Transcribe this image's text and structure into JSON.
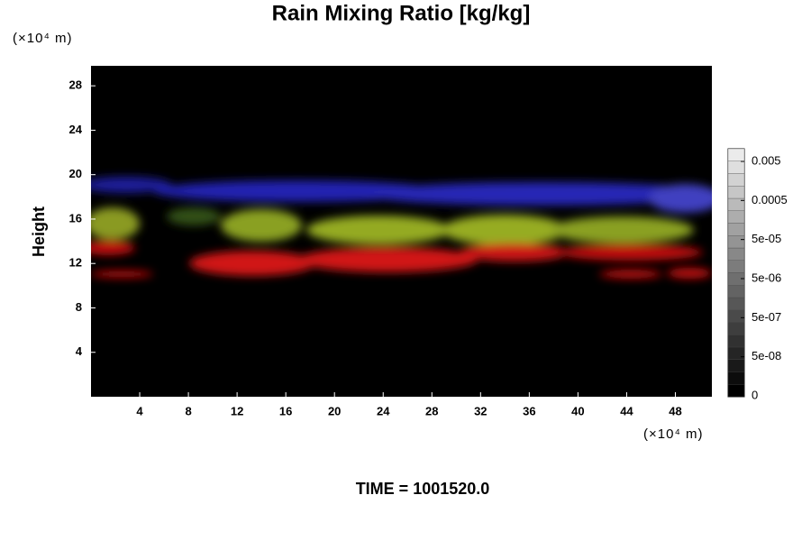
{
  "chart_data": {
    "type": "heatmap",
    "title": "Rain Mixing Ratio [kg/kg]",
    "ylabel": "Height",
    "x_unit": "(×10⁴ m)",
    "y_unit": "(×10⁴ m)",
    "footer": "TIME = 1001520.0",
    "xlim": [
      0,
      51
    ],
    "xticks": [
      4,
      8,
      12,
      16,
      20,
      24,
      28,
      32,
      36,
      40,
      44,
      48
    ],
    "ylim": [
      0,
      29.8
    ],
    "yticks": [
      4,
      8,
      12,
      16,
      20,
      24,
      28
    ],
    "colorbar_ticks": [
      0,
      {
        "value": 5e-08,
        "label": "5e-08"
      },
      {
        "value": 5e-07,
        "label": "5e-07"
      },
      {
        "value": 5e-06,
        "label": "5e-06"
      },
      {
        "value": 5e-05,
        "label": "5e-05"
      },
      0.0005,
      0.005
    ]
  }
}
